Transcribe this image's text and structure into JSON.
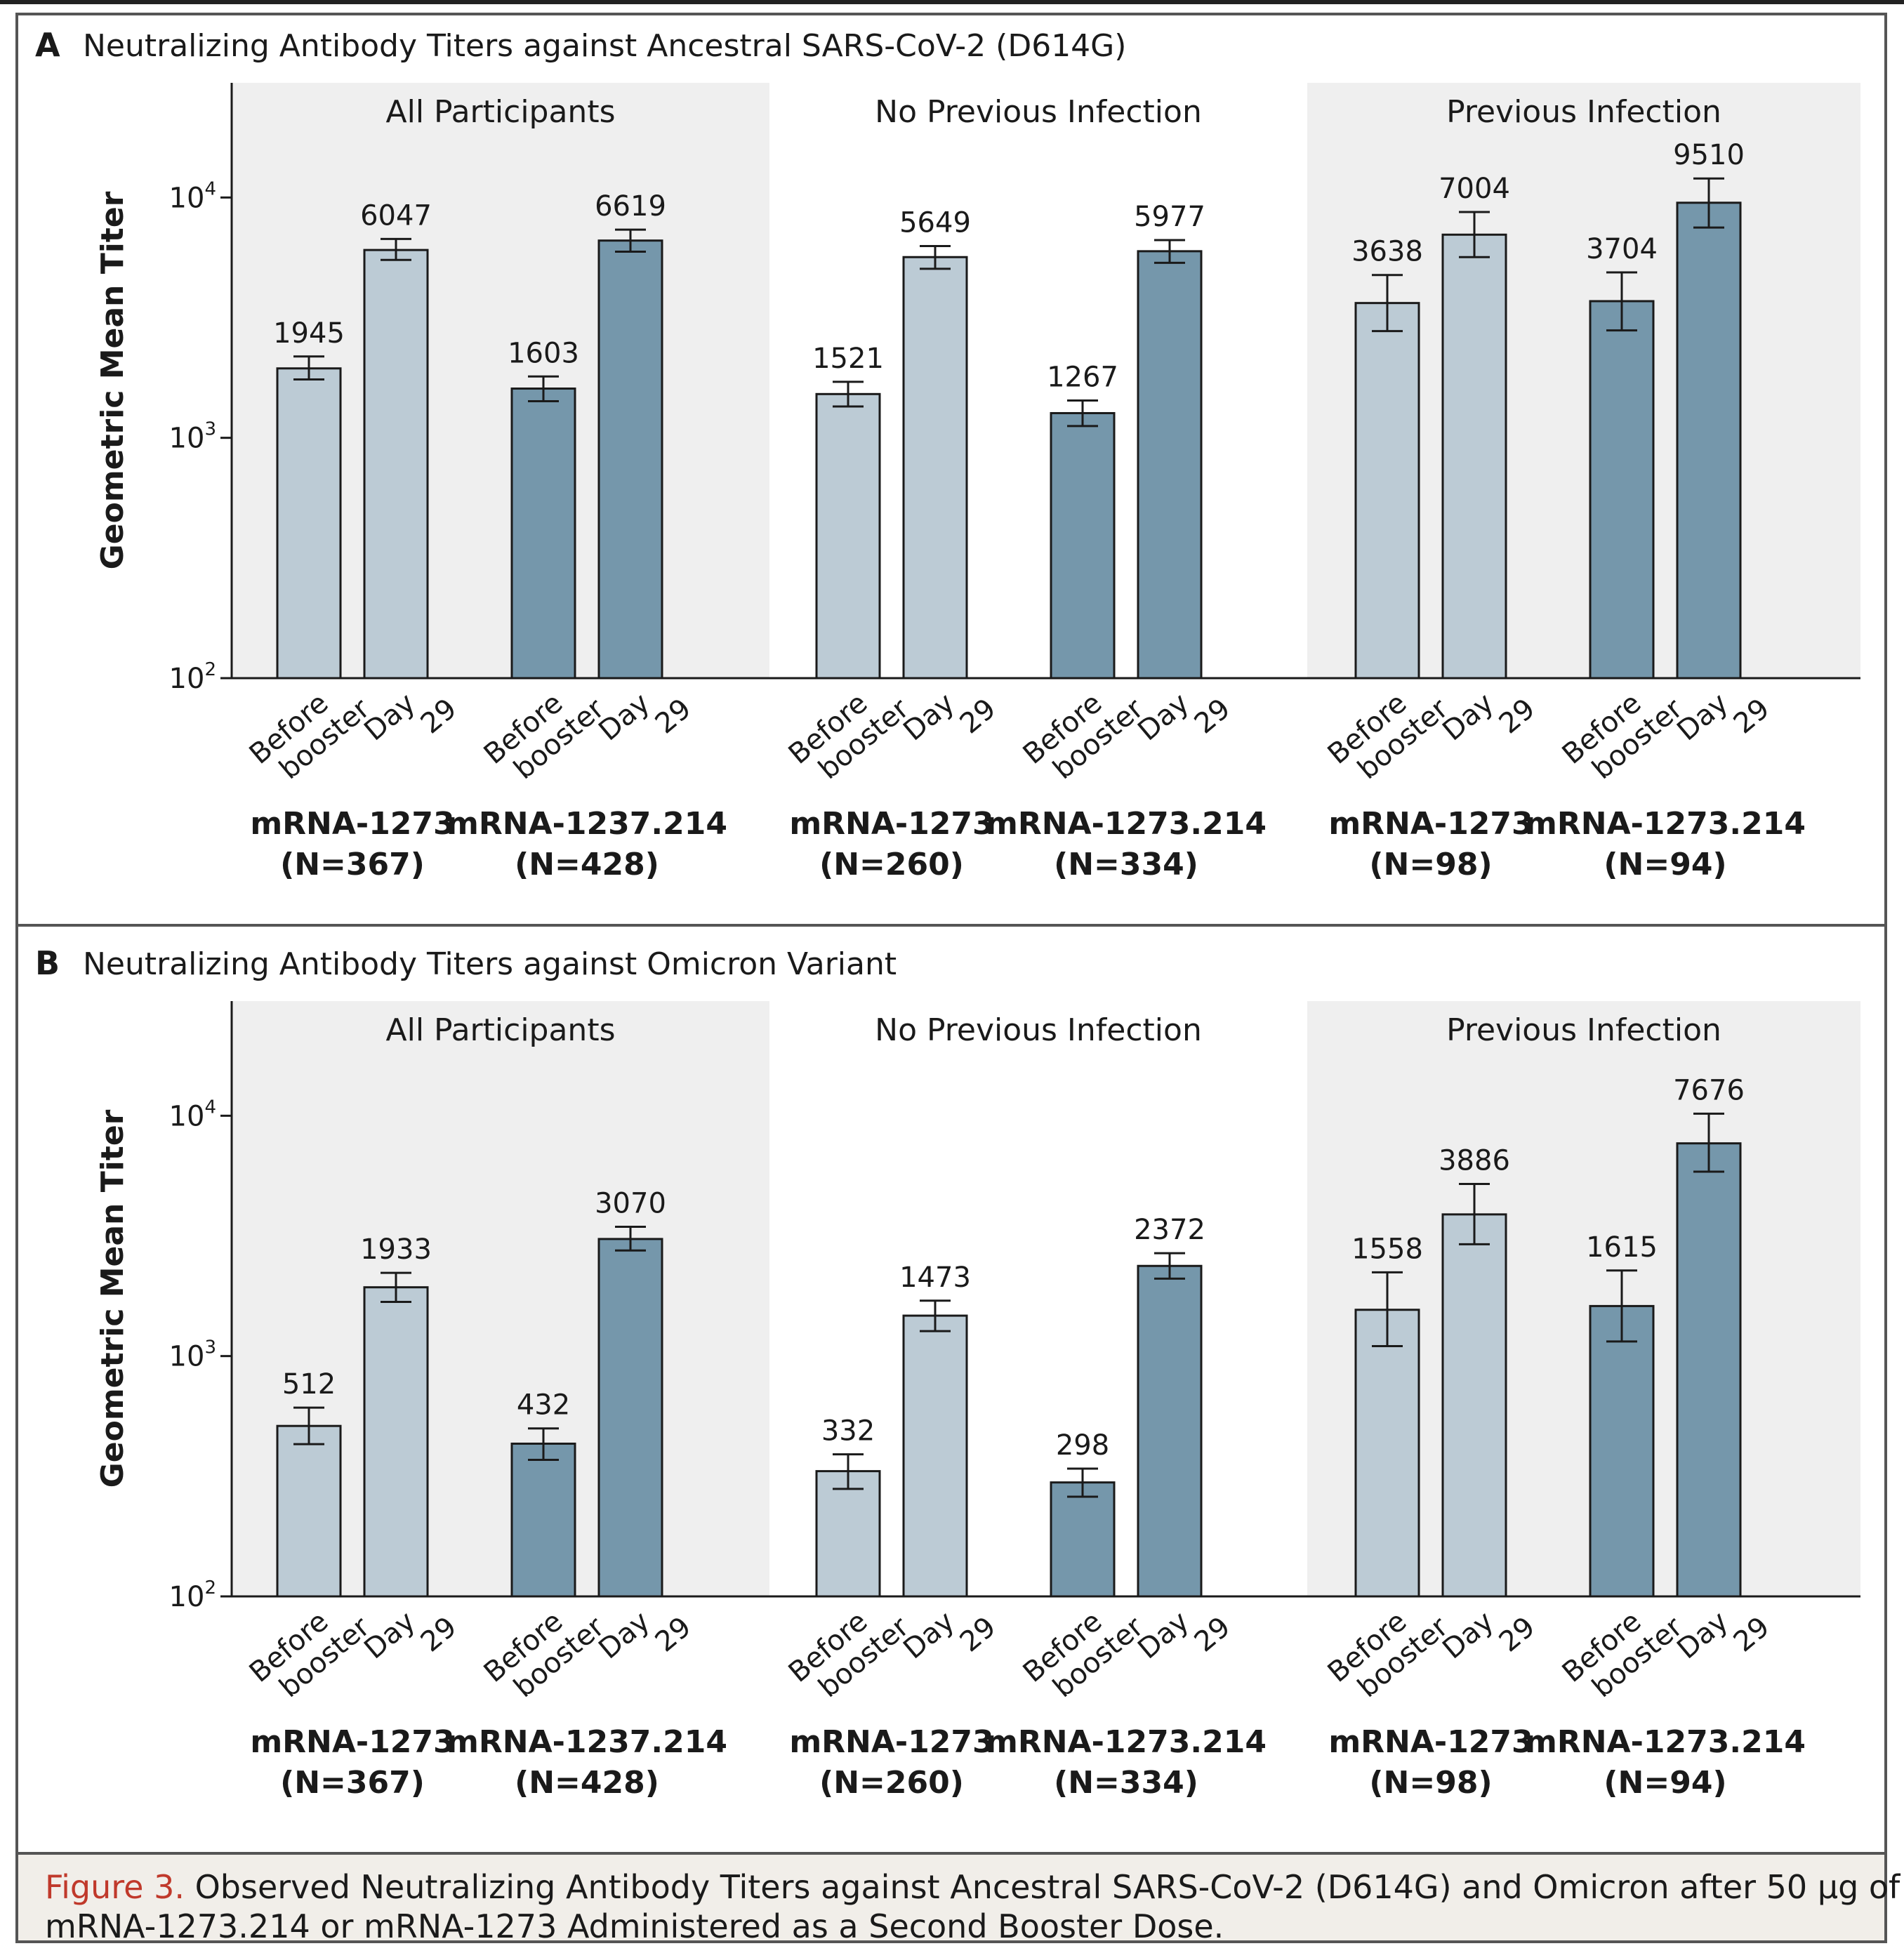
{
  "figure": {
    "caption_label": "Figure 3.",
    "caption_line1": "Observed Neutralizing Antibody Titers against Ancestral SARS-CoV-2 (D614G) and Omicron after 50 μg of",
    "caption_line2": "mRNA-1273.214 or mRNA-1273 Administered as a Second Booster Dose.",
    "colors": {
      "light_bar": "#bccbd5",
      "dark_bar": "#7597ab",
      "panel_shade": "#efefef",
      "caption_bg": "#f1eee9",
      "caption_label": "#c0392b",
      "frame": "#555555"
    }
  },
  "chart_data": [
    {
      "type": "bar",
      "panel_letter": "A",
      "title": "Neutralizing Antibody Titers against Ancestral SARS-CoV-2 (D614G)",
      "ylabel": "Geometric Mean Titer",
      "yscale": "log",
      "ylim": [
        100,
        30000
      ],
      "yticks": [
        100,
        1000,
        10000
      ],
      "ytick_labels": [
        {
          "base": "10",
          "exp": "2"
        },
        {
          "base": "10",
          "exp": "3"
        },
        {
          "base": "10",
          "exp": "4"
        }
      ],
      "grid": false,
      "groups": [
        {
          "name": "All Participants",
          "shaded": true,
          "vaccines": [
            {
              "label": "mRNA-1273",
              "n": "(N=367)",
              "tone": "light",
              "bars": [
                {
                  "category": "Before booster",
                  "value": 1945,
                  "ci": [
                    1750,
                    2180
                  ]
                },
                {
                  "category": "Day 29",
                  "value": 6047,
                  "ci": [
                    5500,
                    6720
                  ]
                }
              ]
            },
            {
              "label": "mRNA-1237.214",
              "n": "(N=428)",
              "tone": "dark",
              "bars": [
                {
                  "category": "Before booster",
                  "value": 1603,
                  "ci": [
                    1420,
                    1800
                  ]
                },
                {
                  "category": "Day 29",
                  "value": 6619,
                  "ci": [
                    5950,
                    7350
                  ]
                }
              ]
            }
          ]
        },
        {
          "name": "No Previous Infection",
          "shaded": false,
          "vaccines": [
            {
              "label": "mRNA-1273",
              "n": "(N=260)",
              "tone": "light",
              "bars": [
                {
                  "category": "Before booster",
                  "value": 1521,
                  "ci": [
                    1350,
                    1710
                  ]
                },
                {
                  "category": "Day 29",
                  "value": 5649,
                  "ci": [
                    5050,
                    6280
                  ]
                }
              ]
            },
            {
              "label": "mRNA-1273.214",
              "n": "(N=334)",
              "tone": "dark",
              "bars": [
                {
                  "category": "Before booster",
                  "value": 1267,
                  "ci": [
                    1120,
                    1430
                  ]
                },
                {
                  "category": "Day 29",
                  "value": 5977,
                  "ci": [
                    5350,
                    6650
                  ]
                }
              ]
            }
          ]
        },
        {
          "name": "Previous Infection",
          "shaded": true,
          "vaccines": [
            {
              "label": "mRNA-1273",
              "n": "(N=98)",
              "tone": "light",
              "bars": [
                {
                  "category": "Before booster",
                  "value": 3638,
                  "ci": [
                    2780,
                    4760
                  ]
                },
                {
                  "category": "Day 29",
                  "value": 7004,
                  "ci": [
                    5650,
                    8700
                  ]
                }
              ]
            },
            {
              "label": "mRNA-1273.214",
              "n": "(N=94)",
              "tone": "dark",
              "bars": [
                {
                  "category": "Before booster",
                  "value": 3704,
                  "ci": [
                    2800,
                    4880
                  ]
                },
                {
                  "category": "Day 29",
                  "value": 9510,
                  "ci": [
                    7500,
                    12000
                  ]
                }
              ]
            }
          ]
        }
      ]
    },
    {
      "type": "bar",
      "panel_letter": "B",
      "title": "Neutralizing Antibody Titers against Omicron Variant",
      "ylabel": "Geometric Mean Titer",
      "yscale": "log",
      "ylim": [
        100,
        30000
      ],
      "yticks": [
        100,
        1000,
        10000
      ],
      "ytick_labels": [
        {
          "base": "10",
          "exp": "2"
        },
        {
          "base": "10",
          "exp": "3"
        },
        {
          "base": "10",
          "exp": "4"
        }
      ],
      "grid": false,
      "groups": [
        {
          "name": "All Participants",
          "shaded": true,
          "vaccines": [
            {
              "label": "mRNA-1273",
              "n": "(N=367)",
              "tone": "light",
              "bars": [
                {
                  "category": "Before booster",
                  "value": 512,
                  "ci": [
                    430,
                    610
                  ]
                },
                {
                  "category": "Day 29",
                  "value": 1933,
                  "ci": [
                    1680,
                    2220
                  ]
                }
              ]
            },
            {
              "label": "mRNA-1237.214",
              "n": "(N=428)",
              "tone": "dark",
              "bars": [
                {
                  "category": "Before booster",
                  "value": 432,
                  "ci": [
                    370,
                    500
                  ]
                },
                {
                  "category": "Day 29",
                  "value": 3070,
                  "ci": [
                    2750,
                    3450
                  ]
                }
              ]
            }
          ]
        },
        {
          "name": "No Previous Infection",
          "shaded": false,
          "vaccines": [
            {
              "label": "mRNA-1273",
              "n": "(N=260)",
              "tone": "light",
              "bars": [
                {
                  "category": "Before booster",
                  "value": 332,
                  "ci": [
                    280,
                    390
                  ]
                },
                {
                  "category": "Day 29",
                  "value": 1473,
                  "ci": [
                    1270,
                    1700
                  ]
                }
              ]
            },
            {
              "label": "mRNA-1273.214",
              "n": "(N=334)",
              "tone": "dark",
              "bars": [
                {
                  "category": "Before booster",
                  "value": 298,
                  "ci": [
                    260,
                    340
                  ]
                },
                {
                  "category": "Day 29",
                  "value": 2372,
                  "ci": [
                    2100,
                    2680
                  ]
                }
              ]
            }
          ]
        },
        {
          "name": "Previous Infection",
          "shaded": true,
          "vaccines": [
            {
              "label": "mRNA-1273",
              "n": "(N=98)",
              "tone": "light",
              "bars": [
                {
                  "category": "Before booster",
                  "value": 1558,
                  "ci": [
                    1100,
                    2230
                  ]
                },
                {
                  "category": "Day 29",
                  "value": 3886,
                  "ci": [
                    2920,
                    5200
                  ]
                }
              ]
            },
            {
              "label": "mRNA-1273.214",
              "n": "(N=94)",
              "tone": "dark",
              "bars": [
                {
                  "category": "Before booster",
                  "value": 1615,
                  "ci": [
                    1150,
                    2270
                  ]
                },
                {
                  "category": "Day 29",
                  "value": 7676,
                  "ci": [
                    5850,
                    10200
                  ]
                }
              ]
            }
          ]
        }
      ]
    }
  ]
}
